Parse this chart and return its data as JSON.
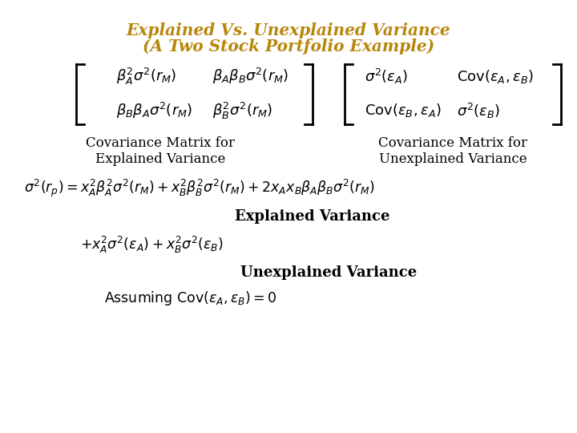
{
  "title_line1": "Explained Vs. Unexplained Variance",
  "title_line2": "(A Two Stock Portfolio Example)",
  "title_color": "#B8860B",
  "background_color": "#FFFFFF",
  "label_left": "Covariance Matrix for\nExplained Variance",
  "label_right": "Covariance Matrix for\nUnexplained Variance",
  "matrix_left_r1c1": "$\\beta_A^2\\sigma^2(r_M)$",
  "matrix_left_r1c2": "$\\beta_A\\beta_B\\sigma^2(r_M)$",
  "matrix_left_r2c1": "$\\beta_B\\beta_A\\sigma^2(r_M)$",
  "matrix_left_r2c2": "$\\beta_B^2\\sigma^2(r_M)$",
  "matrix_right_r1c1": "$\\sigma^2(\\varepsilon_A)$",
  "matrix_right_r1c2": "$\\mathrm{Cov}(\\varepsilon_A,\\varepsilon_B)$",
  "matrix_right_r2c1": "$\\mathrm{Cov}(\\varepsilon_B,\\varepsilon_A)$",
  "matrix_right_r2c2": "$\\sigma^2(\\varepsilon_B)$",
  "formula_line1": "$\\sigma^2(r_p)=x_A^2\\beta_A^2\\sigma^2(r_M)+x_B^2\\beta_B^2\\sigma^2(r_M)+2x_Ax_B\\beta_A\\beta_B\\sigma^2(r_M)$",
  "label_explained": "Explained Variance",
  "formula_line2": "$+x_A^2\\sigma^2(\\varepsilon_A)+x_B^2\\sigma^2(\\varepsilon_B)$",
  "label_unexplained": "Unexplained Variance",
  "formula_line3": "$\\mathrm{Assuming\\ Cov}(\\varepsilon_A,\\varepsilon_B)=0$",
  "text_color": "#000000"
}
